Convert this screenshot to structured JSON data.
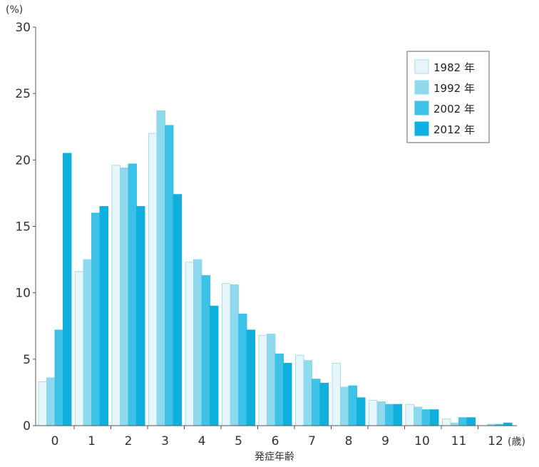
{
  "chart_data": {
    "type": "bar",
    "categories": [
      "0",
      "1",
      "2",
      "3",
      "4",
      "5",
      "6",
      "7",
      "8",
      "9",
      "10",
      "11",
      "12"
    ],
    "series": [
      {
        "name": "1982 年",
        "values": [
          3.3,
          11.6,
          19.6,
          22.0,
          12.3,
          10.7,
          6.8,
          5.3,
          4.7,
          1.9,
          1.6,
          0.5,
          0.0
        ]
      },
      {
        "name": "1992 年",
        "values": [
          3.6,
          12.5,
          19.4,
          23.7,
          12.5,
          10.6,
          6.9,
          4.9,
          2.9,
          1.8,
          1.4,
          0.2,
          0.1
        ]
      },
      {
        "name": "2002 年",
        "values": [
          7.2,
          16.0,
          19.7,
          22.6,
          11.3,
          8.4,
          5.4,
          3.5,
          3.0,
          1.6,
          1.2,
          0.6,
          0.1
        ]
      },
      {
        "name": "2012 年",
        "values": [
          20.5,
          16.5,
          16.5,
          17.4,
          9.0,
          7.2,
          4.7,
          3.2,
          2.1,
          1.6,
          1.2,
          0.6,
          0.2
        ]
      }
    ],
    "colors": [
      "#e7f6fb",
      "#8fd9ee",
      "#3ec1e6",
      "#10b0de"
    ],
    "ylim": [
      0,
      30
    ],
    "yticks": [
      0,
      5,
      10,
      15,
      20,
      25,
      30
    ],
    "yunit": "(%)",
    "xunit": "(歳)",
    "xlabel": "発症年齢",
    "legend_position": "top-right",
    "grid": false
  }
}
